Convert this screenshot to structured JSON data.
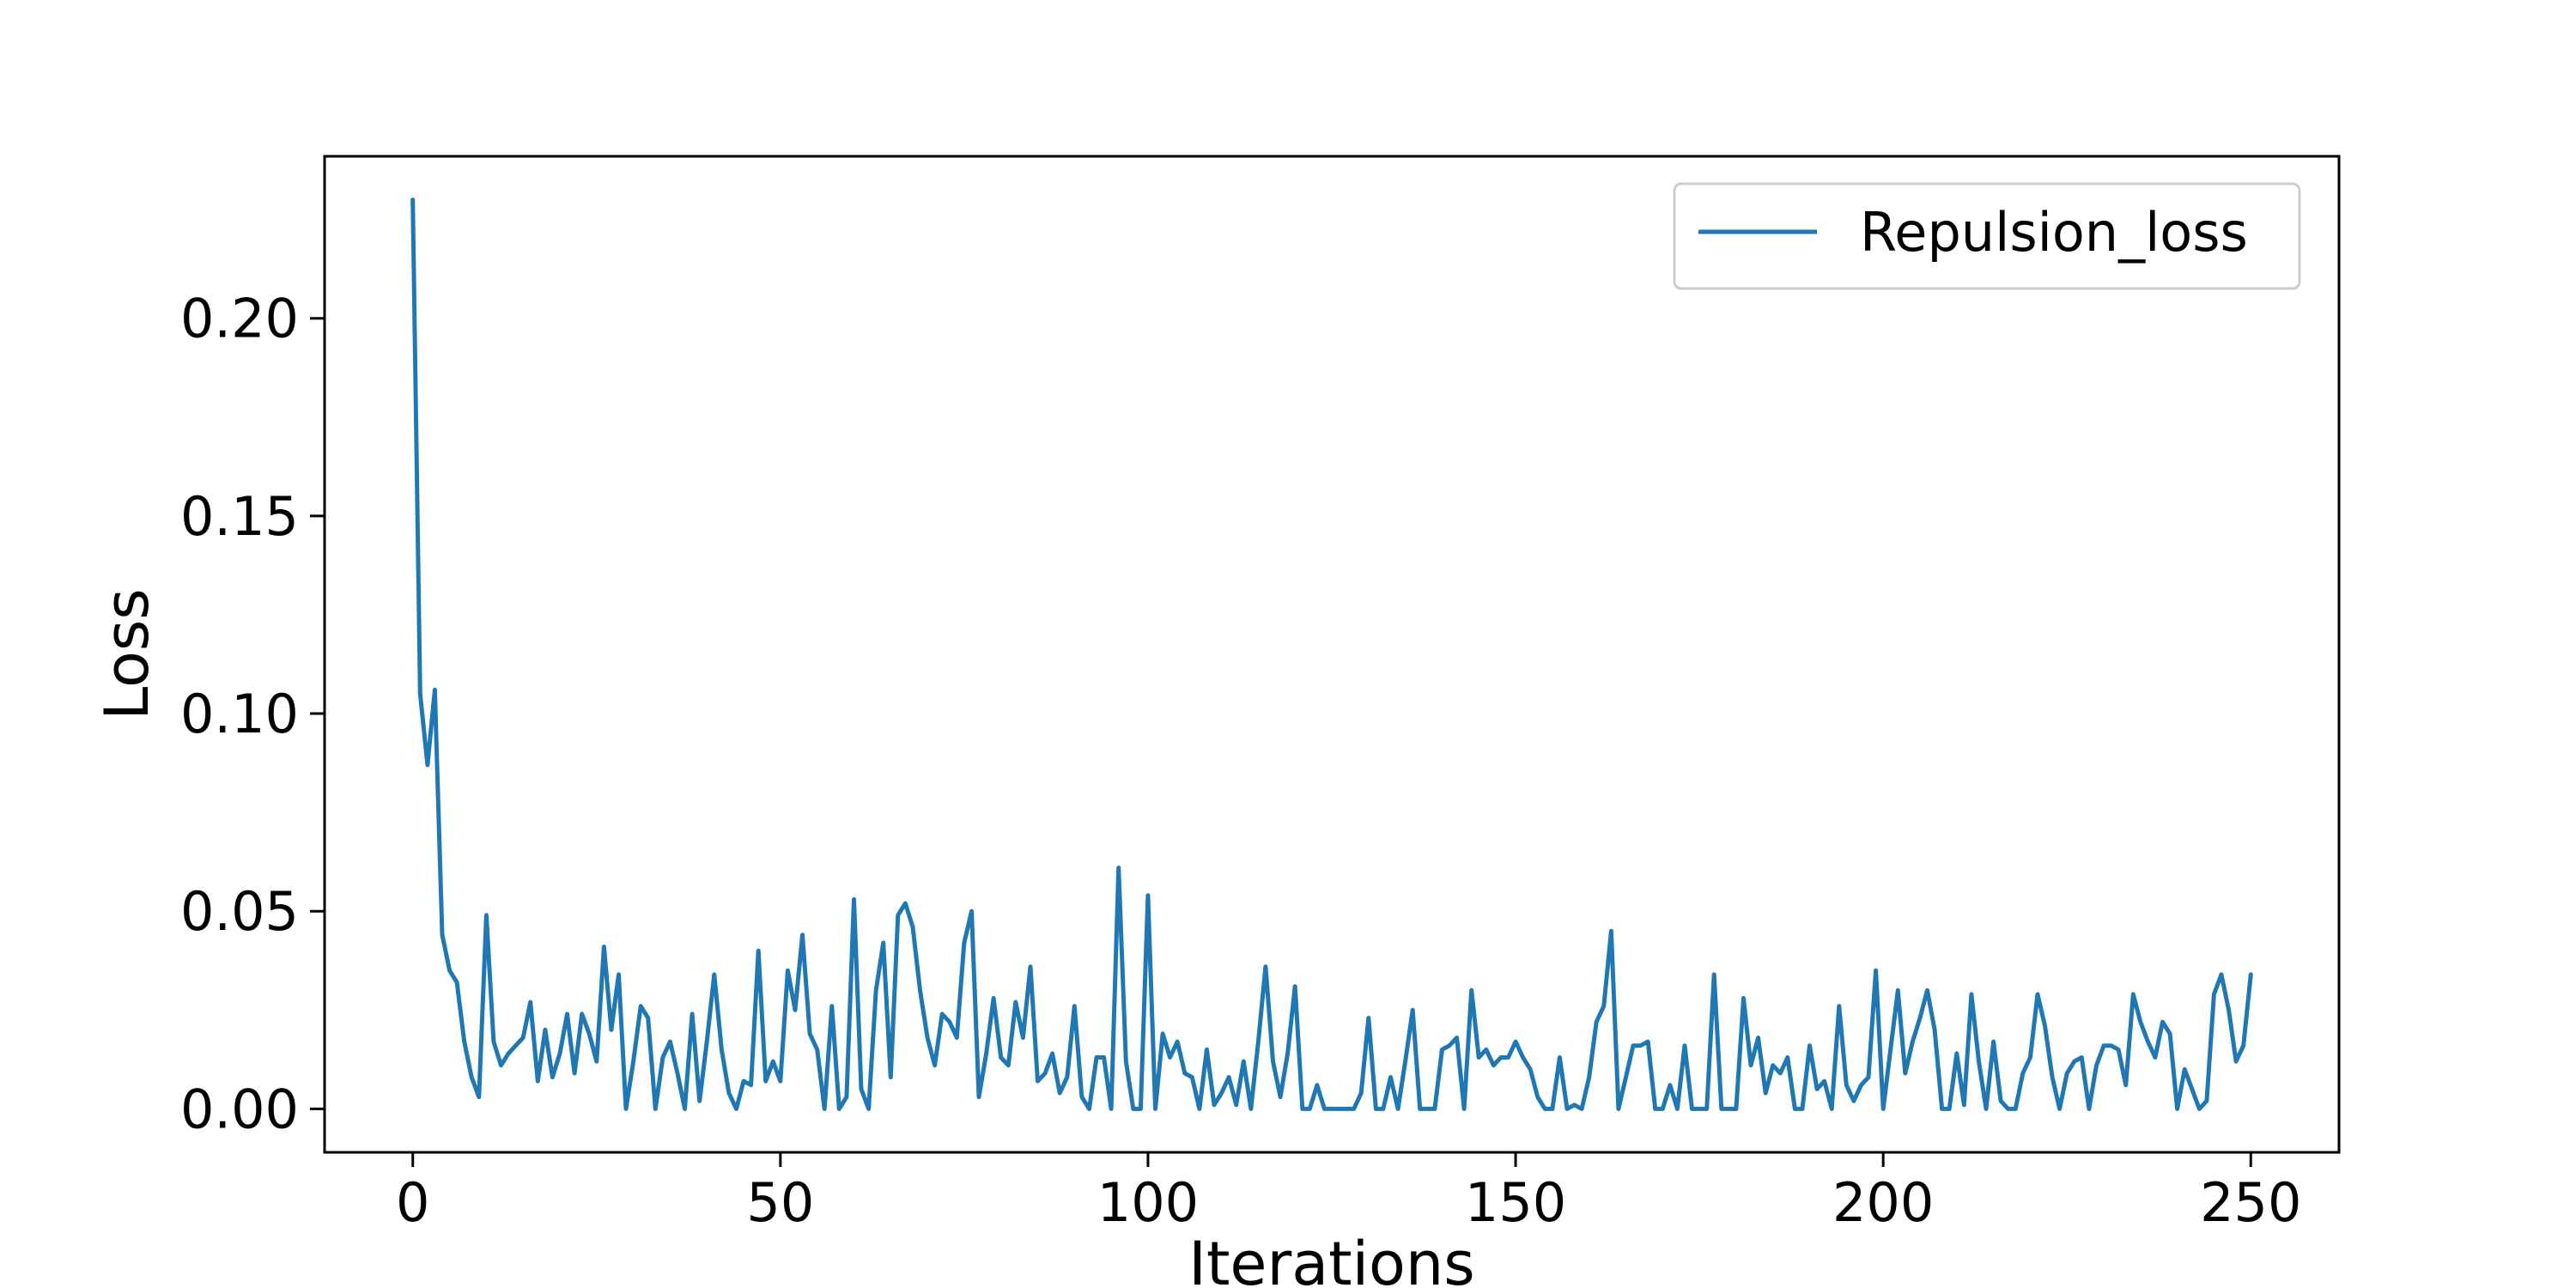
{
  "chart_data": {
    "type": "line",
    "title": "",
    "xlabel": "Iterations",
    "ylabel": "Loss",
    "xlim": [
      -12,
      262
    ],
    "ylim": [
      -0.011,
      0.241
    ],
    "xticks": [
      0,
      50,
      100,
      150,
      200,
      250
    ],
    "xtick_labels": [
      "0",
      "50",
      "100",
      "150",
      "200",
      "250"
    ],
    "yticks": [
      0.0,
      0.05,
      0.1,
      0.15,
      0.2
    ],
    "ytick_labels": [
      "0.00",
      "0.05",
      "0.10",
      "0.15",
      "0.20"
    ],
    "grid": false,
    "legend": {
      "position": "top-right"
    },
    "series": [
      {
        "name": "Repulsion_loss",
        "color": "#1f77b4",
        "x_start": 0,
        "x_step": 1,
        "values": [
          0.23,
          0.105,
          0.087,
          0.106,
          0.044,
          0.035,
          0.032,
          0.017,
          0.008,
          0.003,
          0.049,
          0.017,
          0.011,
          0.014,
          0.016,
          0.018,
          0.027,
          0.007,
          0.02,
          0.008,
          0.014,
          0.024,
          0.009,
          0.024,
          0.019,
          0.012,
          0.041,
          0.02,
          0.034,
          0.0,
          0.012,
          0.026,
          0.023,
          0.0,
          0.013,
          0.017,
          0.009,
          0.0,
          0.024,
          0.002,
          0.017,
          0.034,
          0.015,
          0.004,
          0.0,
          0.007,
          0.006,
          0.04,
          0.007,
          0.012,
          0.007,
          0.035,
          0.025,
          0.044,
          0.019,
          0.015,
          0.0,
          0.026,
          0.0,
          0.003,
          0.053,
          0.005,
          0.0,
          0.03,
          0.042,
          0.008,
          0.049,
          0.052,
          0.046,
          0.03,
          0.018,
          0.011,
          0.024,
          0.022,
          0.018,
          0.042,
          0.05,
          0.003,
          0.014,
          0.028,
          0.013,
          0.011,
          0.027,
          0.018,
          0.036,
          0.007,
          0.009,
          0.014,
          0.004,
          0.008,
          0.026,
          0.003,
          0.0,
          0.013,
          0.013,
          0.0,
          0.061,
          0.012,
          0.0,
          0.0,
          0.054,
          0.0,
          0.019,
          0.013,
          0.017,
          0.009,
          0.008,
          0.0,
          0.015,
          0.001,
          0.004,
          0.008,
          0.001,
          0.012,
          0.0,
          0.017,
          0.036,
          0.012,
          0.003,
          0.014,
          0.031,
          0.0,
          0.0,
          0.006,
          0.0,
          0.0,
          0.0,
          0.0,
          0.0,
          0.004,
          0.023,
          0.0,
          0.0,
          0.008,
          0.0,
          0.012,
          0.025,
          0.0,
          0.0,
          0.0,
          0.015,
          0.016,
          0.018,
          0.0,
          0.03,
          0.013,
          0.015,
          0.011,
          0.013,
          0.013,
          0.017,
          0.013,
          0.01,
          0.003,
          0.0,
          0.0,
          0.013,
          0.0,
          0.001,
          0.0,
          0.008,
          0.022,
          0.026,
          0.045,
          0.0,
          0.008,
          0.016,
          0.016,
          0.017,
          0.0,
          0.0,
          0.006,
          0.0,
          0.016,
          0.0,
          0.0,
          0.0,
          0.034,
          0.0,
          0.0,
          0.0,
          0.028,
          0.011,
          0.018,
          0.004,
          0.011,
          0.009,
          0.013,
          0.0,
          0.0,
          0.016,
          0.005,
          0.007,
          0.0,
          0.026,
          0.006,
          0.002,
          0.006,
          0.008,
          0.035,
          0.0,
          0.015,
          0.03,
          0.009,
          0.017,
          0.023,
          0.03,
          0.02,
          0.0,
          0.0,
          0.014,
          0.001,
          0.029,
          0.012,
          0.0,
          0.017,
          0.002,
          0.0,
          0.0,
          0.009,
          0.013,
          0.029,
          0.021,
          0.008,
          0.0,
          0.009,
          0.012,
          0.013,
          0.0,
          0.011,
          0.016,
          0.016,
          0.015,
          0.006,
          0.029,
          0.022,
          0.017,
          0.013,
          0.022,
          0.019,
          0.0,
          0.01,
          0.005,
          0.0,
          0.002,
          0.029,
          0.034,
          0.025,
          0.012,
          0.016,
          0.034
        ]
      }
    ]
  }
}
